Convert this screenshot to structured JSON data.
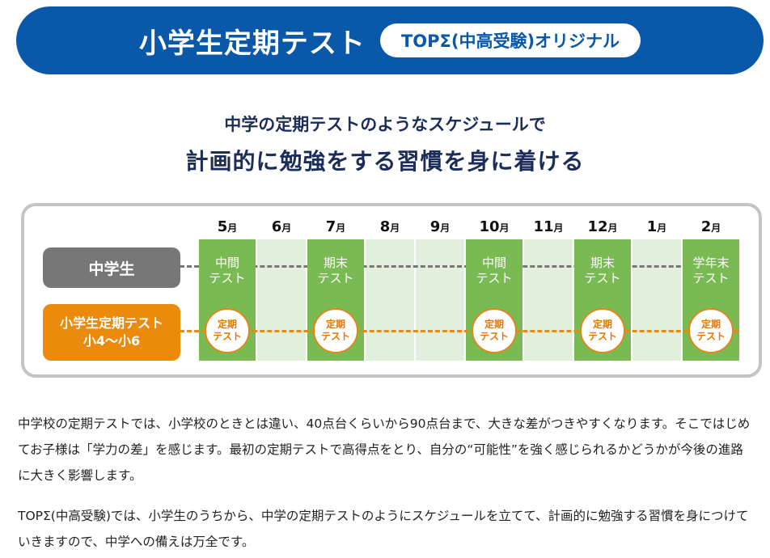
{
  "banner": {
    "title": "小学生定期テスト",
    "tag": "TOPΣ(中高受験)オリジナル"
  },
  "headline": {
    "line1": "中学の定期テストのようなスケジュールで",
    "line2": "計画的に勉強をする習慣を身に着ける"
  },
  "schedule": {
    "rows": {
      "junior_high": "中学生",
      "elementary_line1": "小学生定期テスト",
      "elementary_line2": "小4〜小6"
    },
    "month_suffix": "月",
    "months": [
      {
        "num": "5",
        "jh_line1": "中間",
        "jh_line2": "テスト",
        "el_line1": "定期",
        "el_line2": "テスト"
      },
      {
        "num": "6"
      },
      {
        "num": "7",
        "jh_line1": "期末",
        "jh_line2": "テスト",
        "el_line1": "定期",
        "el_line2": "テスト"
      },
      {
        "num": "8"
      },
      {
        "num": "9"
      },
      {
        "num": "10",
        "jh_line1": "中間",
        "jh_line2": "テスト",
        "el_line1": "定期",
        "el_line2": "テスト"
      },
      {
        "num": "11"
      },
      {
        "num": "12",
        "jh_line1": "期末",
        "jh_line2": "テスト",
        "el_line1": "定期",
        "el_line2": "テスト"
      },
      {
        "num": "1"
      },
      {
        "num": "2",
        "jh_line1": "学年末",
        "jh_line2": "テスト",
        "el_line1": "定期",
        "el_line2": "テスト"
      }
    ]
  },
  "body": {
    "p1": "中学校の定期テストでは、小学校のときとは違い、40点台くらいから90点台まで、大きな差がつきやすくなります。そこではじめてお子様は「学力の差」を感じます。最初の定期テストで高得点をとり、自分の“可能性”を強く感じられるかどうかが今後の進路に大きく影響します。",
    "p2": "TOPΣ(中高受験)では、小学生のうちから、中学の定期テストのようにスケジュールを立てて、計画的に勉強する習慣を身につけていきますので、中学への備えは万全です。"
  },
  "colors": {
    "blue": "#0a58aa",
    "green": "#7aba52",
    "light_green": "#e2efdc",
    "orange": "#ec8a0c",
    "gray": "#777777"
  }
}
